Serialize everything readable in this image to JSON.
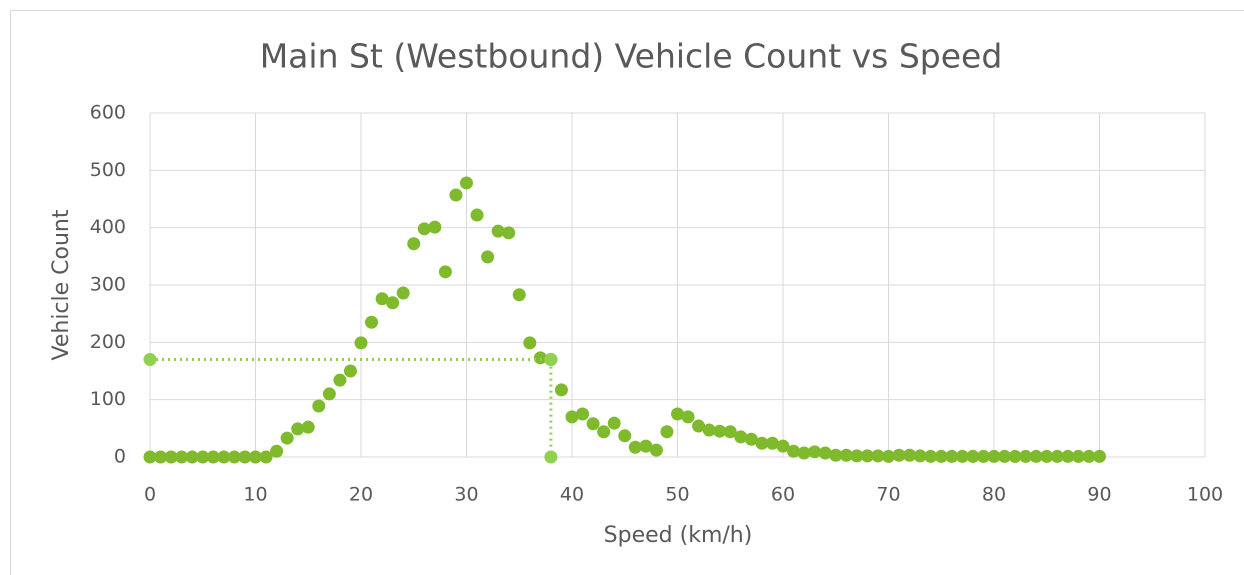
{
  "chart_data": {
    "type": "scatter",
    "title": "Main St (Westbound) Vehicle Count vs Speed",
    "xlabel": "Speed (km/h)",
    "ylabel": "Vehicle Count",
    "xlim": [
      0,
      100
    ],
    "xticks": [
      0,
      10,
      20,
      30,
      40,
      50,
      60,
      70,
      80,
      90,
      100
    ],
    "ylim": [
      0,
      600
    ],
    "yticks": [
      0,
      100,
      200,
      300,
      400,
      500,
      600
    ],
    "grid": true,
    "series": [
      {
        "color": "#7fba2c",
        "x": [
          0,
          1,
          2,
          3,
          4,
          5,
          6,
          7,
          8,
          9,
          10,
          11,
          12,
          13,
          14,
          15,
          16,
          17,
          18,
          19,
          20,
          21,
          22,
          23,
          24,
          25,
          26,
          27,
          28,
          29,
          30,
          31,
          32,
          33,
          34,
          35,
          36,
          37,
          38,
          39,
          40,
          41,
          42,
          43,
          44,
          45,
          46,
          47,
          48,
          49,
          50,
          51,
          52,
          53,
          54,
          55,
          56,
          57,
          58,
          59,
          60,
          61,
          62,
          63,
          64,
          65,
          66,
          67,
          68,
          69,
          70,
          71,
          72,
          73,
          74,
          75,
          76,
          77,
          78,
          79,
          80,
          81,
          82,
          83,
          84,
          85,
          86,
          87,
          88,
          89,
          90
        ],
        "values": [
          0,
          0,
          0,
          0,
          0,
          0,
          0,
          0,
          0,
          0,
          0,
          0,
          10,
          33,
          49,
          52,
          89,
          110,
          134,
          150,
          199,
          235,
          276,
          269,
          286,
          372,
          398,
          401,
          323,
          457,
          478,
          422,
          349,
          394,
          391,
          283,
          199,
          173,
          170,
          117,
          70,
          75,
          58,
          44,
          59,
          37,
          17,
          19,
          12,
          44,
          75,
          70,
          54,
          47,
          45,
          44,
          35,
          31,
          24,
          24,
          19,
          10,
          7,
          9,
          7,
          3,
          3,
          2,
          2,
          2,
          1,
          3,
          3,
          2,
          1,
          1,
          1,
          1,
          1,
          1,
          1,
          1,
          1,
          1,
          1,
          1,
          1,
          1,
          1,
          1,
          1
        ]
      },
      {
        "color": "#92d050",
        "dotted": true,
        "x": [
          0,
          38,
          38
        ],
        "values": [
          170,
          170,
          0
        ]
      }
    ]
  }
}
